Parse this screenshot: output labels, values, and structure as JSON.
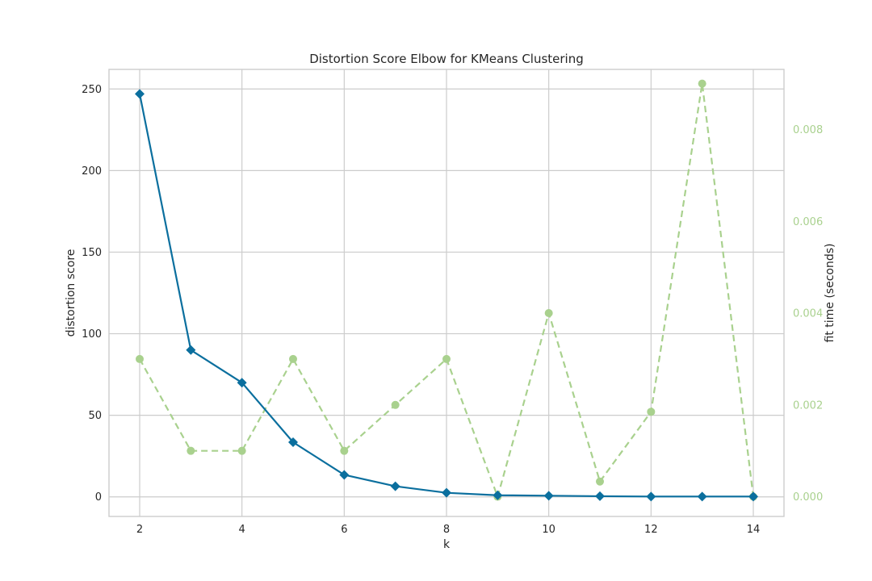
{
  "chart_data": {
    "type": "line",
    "title": "Distortion Score Elbow for KMeans Clustering",
    "xlabel": "k",
    "ylabel": "distortion score",
    "y2label": "fit time (seconds)",
    "x": [
      2,
      3,
      4,
      5,
      6,
      7,
      8,
      9,
      10,
      11,
      12,
      13,
      14
    ],
    "xlim": [
      1.4,
      14.6
    ],
    "ylim": [
      -12,
      262
    ],
    "y2lim": [
      -0.00043,
      0.00931
    ],
    "xticks": [
      2,
      4,
      6,
      8,
      10,
      12,
      14
    ],
    "yticks": [
      0,
      50,
      100,
      150,
      200,
      250
    ],
    "y2ticks": [
      "0.000",
      "0.002",
      "0.004",
      "0.006",
      "0.008"
    ],
    "grid": true,
    "series": [
      {
        "axis": "left",
        "marker": "diamond",
        "line": "solid",
        "color": "#0b6f9e",
        "values": [
          247,
          90,
          70,
          33.5,
          13.5,
          6.5,
          2.5,
          1.0,
          0.7,
          0.4,
          0.2,
          0.2,
          0.2
        ]
      },
      {
        "axis": "right",
        "marker": "circle",
        "line": "dashed",
        "color": "#a9d18e",
        "values": [
          0.003,
          0.001,
          0.001,
          0.003,
          0.001,
          0.002,
          0.003,
          0.0,
          0.004,
          0.00033,
          0.00185,
          0.009,
          0.0
        ]
      }
    ]
  }
}
